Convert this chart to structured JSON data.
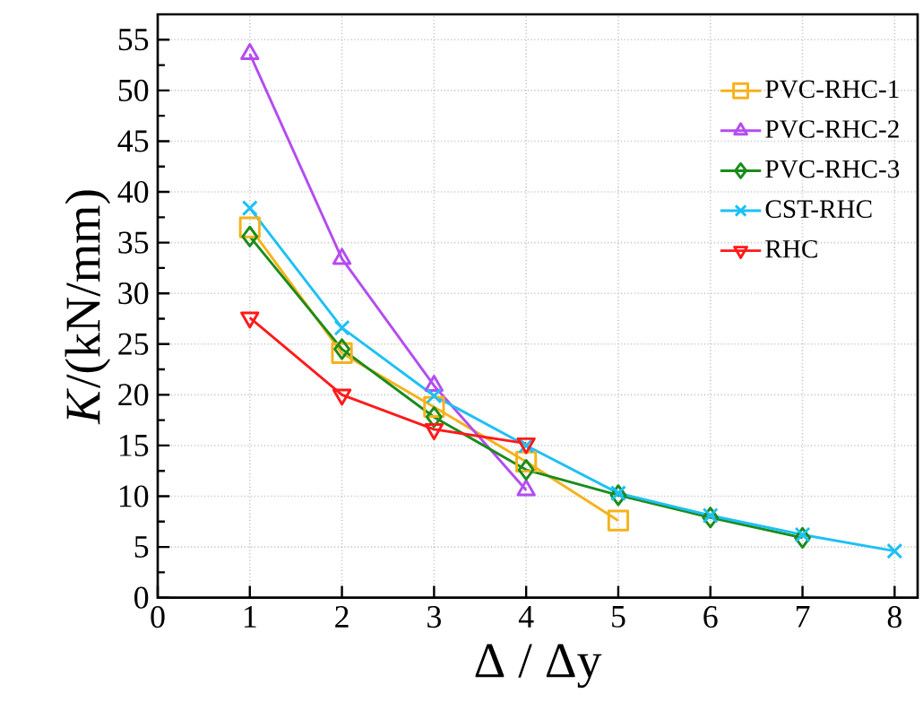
{
  "chart_data": {
    "type": "line",
    "xlabel": "Δ / Δy",
    "ylabel": "*K*/(kN/mm)",
    "xlim": [
      0,
      8.25
    ],
    "ylim": [
      0,
      57.5
    ],
    "xticks": [
      0,
      1,
      2,
      3,
      4,
      5,
      6,
      7,
      8
    ],
    "yticks": [
      0,
      5,
      10,
      15,
      20,
      25,
      30,
      35,
      40,
      45,
      50,
      55
    ],
    "grid": true,
    "legend": "top right",
    "line_style": "solid",
    "series": [
      {
        "name": "PVC-RHC-1",
        "color": "#f5b21b",
        "marker": "square",
        "x": [
          1,
          2,
          3,
          4,
          5
        ],
        "values": [
          36.5,
          24.1,
          18.8,
          13.4,
          7.6
        ]
      },
      {
        "name": "PVC-RHC-2",
        "color": "#b44cf0",
        "marker": "triangle",
        "x": [
          1,
          2,
          3,
          4
        ],
        "values": [
          53.6,
          33.4,
          20.9,
          10.6
        ]
      },
      {
        "name": "PVC-RHC-3",
        "color": "#1a8c1a",
        "marker": "diamond",
        "x": [
          1,
          2,
          3,
          4,
          5,
          6,
          7
        ],
        "values": [
          35.6,
          24.5,
          17.8,
          12.6,
          10.1,
          7.9,
          5.9
        ]
      },
      {
        "name": "CST-RHC",
        "color": "#1ec0f5",
        "marker": "cross",
        "x": [
          1,
          2,
          3,
          4,
          5,
          6,
          7,
          8
        ],
        "values": [
          38.4,
          26.6,
          19.9,
          15.0,
          10.3,
          8.1,
          6.2,
          4.6
        ]
      },
      {
        "name": "RHC",
        "color": "#ff1a1a",
        "marker": "triangle_down",
        "x": [
          1,
          2,
          3,
          4
        ],
        "values": [
          27.6,
          20.0,
          16.6,
          15.2
        ]
      }
    ]
  }
}
